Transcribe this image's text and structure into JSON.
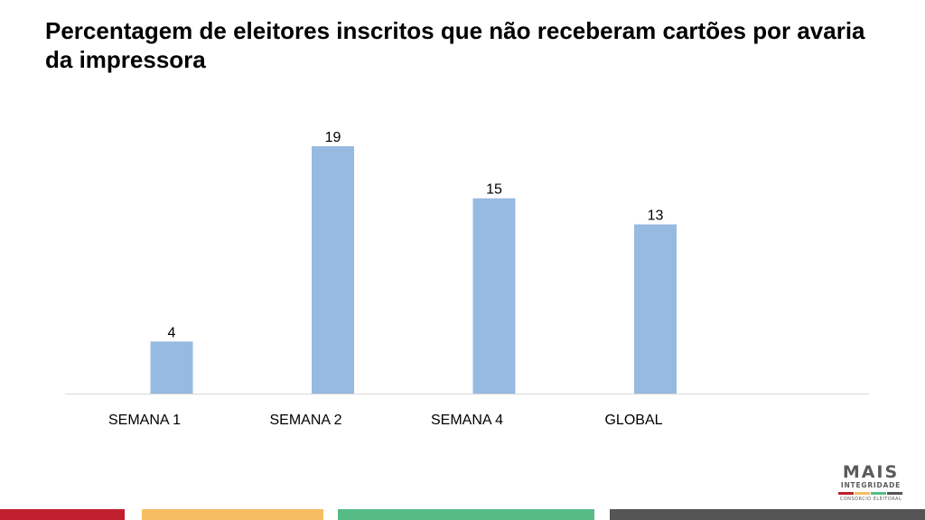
{
  "slide": {
    "title": "Percentagem de eleitores inscritos que não receberam cartões por avaria da impressora"
  },
  "chart_data": {
    "type": "bar",
    "title": "Percentagem de eleitores inscritos que não receberam cartões por avaria da impressora",
    "categories": [
      "SEMANA 1",
      "SEMANA 2",
      "SEMANA 4",
      "GLOBAL"
    ],
    "values": [
      4,
      19,
      15,
      13
    ],
    "data_labels": [
      "4",
      "19",
      "15",
      "13"
    ],
    "xlabel": "",
    "ylabel": "",
    "ylim": [
      0,
      19
    ],
    "grid": false,
    "legend": "none",
    "bar_color": "#97bae0",
    "axis_color": "#d9d9d9"
  },
  "logo": {
    "main": "MAIS",
    "sub": "INTEGRIDADE",
    "foot": "CONSÓRCIO ELEITORAL",
    "stripe_colors": [
      "#c0202e",
      "#f6bd60",
      "#57bb85",
      "#555555"
    ]
  },
  "footer": {
    "colors": [
      "#c0202e",
      "#f6bd60",
      "#57bb85",
      "#555555"
    ]
  }
}
